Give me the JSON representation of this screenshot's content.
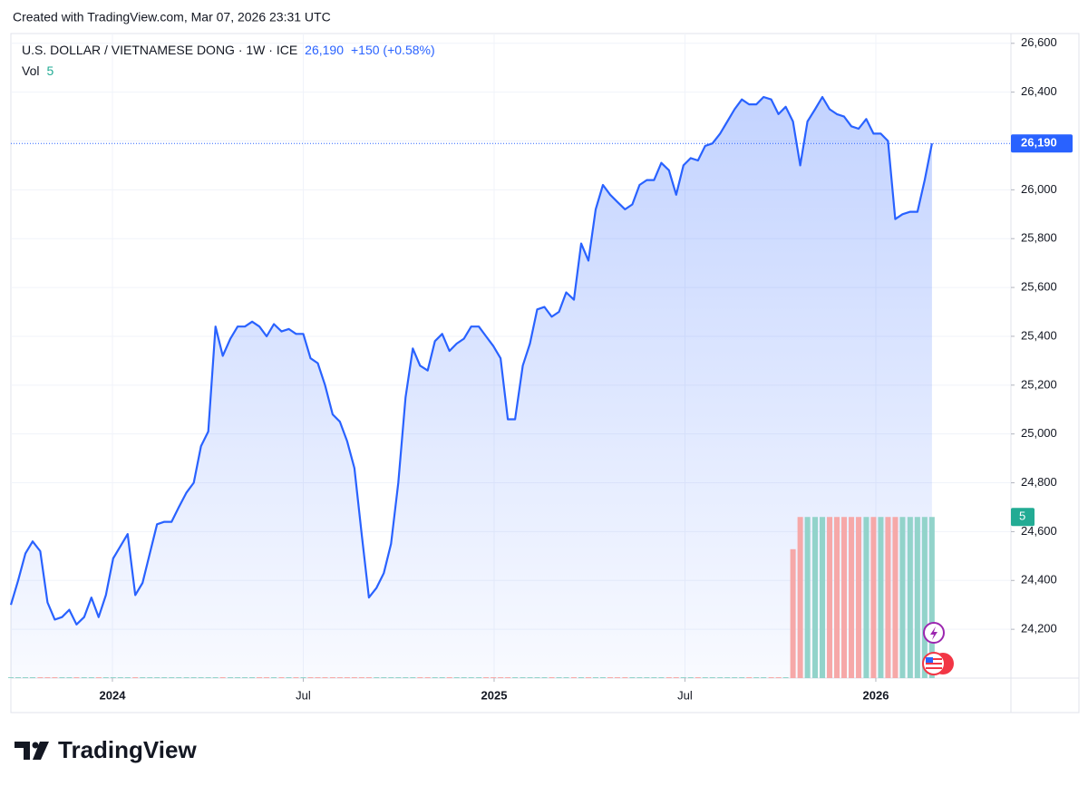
{
  "header": "Created with TradingView.com, Mar 07, 2026 23:31 UTC",
  "footer": "TradingView",
  "chart_data": {
    "type": "line",
    "title": "U.S. DOLLAR / VIETNAMESE DONG · 1W · ICE",
    "last_price": {
      "value": 26190,
      "label": "26,190"
    },
    "change": "+150 (+0.58%)",
    "xlim": [
      2023.734,
      2026.354
    ],
    "xticks": [
      {
        "value": 2024,
        "label": "2024"
      },
      {
        "value": 2024.5,
        "label": "Jul"
      },
      {
        "value": 2025,
        "label": "2025"
      },
      {
        "value": 2025.5,
        "label": "Jul"
      },
      {
        "value": 2026,
        "label": "2026"
      }
    ],
    "ylim": [
      24000,
      26640
    ],
    "yticks": [
      {
        "value": 24200,
        "label": "24,200"
      },
      {
        "value": 24400,
        "label": "24,400"
      },
      {
        "value": 24600,
        "label": "24,600"
      },
      {
        "value": 24800,
        "label": "24,800"
      },
      {
        "value": 25000,
        "label": "25,000"
      },
      {
        "value": 25200,
        "label": "25,200"
      },
      {
        "value": 25400,
        "label": "25,400"
      },
      {
        "value": 25600,
        "label": "25,600"
      },
      {
        "value": 25800,
        "label": "25,800"
      },
      {
        "value": 26000,
        "label": "26,000"
      },
      {
        "value": 26200,
        "label": "26,200"
      },
      {
        "value": 26400,
        "label": "26,400"
      },
      {
        "value": 26600,
        "label": "26,600"
      }
    ],
    "y2lim": [
      0,
      20
    ],
    "grid": true,
    "x": [
      2023.734,
      2023.753,
      2023.772,
      2023.791,
      2023.811,
      2023.83,
      2023.849,
      2023.868,
      2023.887,
      2023.906,
      2023.926,
      2023.945,
      2023.964,
      2023.983,
      2024.002,
      2024.021,
      2024.04,
      2024.06,
      2024.079,
      2024.098,
      2024.117,
      2024.136,
      2024.155,
      2024.174,
      2024.194,
      2024.213,
      2024.232,
      2024.251,
      2024.27,
      2024.289,
      2024.309,
      2024.328,
      2024.347,
      2024.366,
      2024.385,
      2024.404,
      2024.423,
      2024.443,
      2024.462,
      2024.481,
      2024.5,
      2024.519,
      2024.538,
      2024.557,
      2024.577,
      2024.596,
      2024.615,
      2024.634,
      2024.653,
      2024.672,
      2024.692,
      2024.711,
      2024.73,
      2024.749,
      2024.768,
      2024.787,
      2024.806,
      2024.826,
      2024.845,
      2024.864,
      2024.883,
      2024.902,
      2024.921,
      2024.94,
      2024.96,
      2024.979,
      2024.998,
      2025.017,
      2025.036,
      2025.055,
      2025.075,
      2025.094,
      2025.113,
      2025.132,
      2025.151,
      2025.17,
      2025.189,
      2025.209,
      2025.228,
      2025.247,
      2025.266,
      2025.285,
      2025.304,
      2025.323,
      2025.343,
      2025.362,
      2025.381,
      2025.4,
      2025.419,
      2025.438,
      2025.458,
      2025.477,
      2025.496,
      2025.515,
      2025.534,
      2025.553,
      2025.572,
      2025.592,
      2025.611,
      2025.63,
      2025.649,
      2025.668,
      2025.687,
      2025.706,
      2025.726,
      2025.745,
      2025.764,
      2025.783,
      2025.802,
      2025.821,
      2025.841,
      2025.86,
      2025.879,
      2025.898,
      2025.917,
      2025.936,
      2025.955,
      2025.975,
      2025.994,
      2026.013,
      2026.032,
      2026.051,
      2026.07,
      2026.09,
      2026.109,
      2026.128,
      2026.147
    ],
    "series": [
      {
        "color": "#2962ff",
        "values": [
          24300,
          24400,
          24510,
          24560,
          24520,
          24310,
          24240,
          24250,
          24280,
          24220,
          24250,
          24330,
          24250,
          24340,
          24490,
          24540,
          24590,
          24340,
          24390,
          24510,
          24630,
          24640,
          24640,
          24700,
          24760,
          24800,
          24950,
          25010,
          25440,
          25320,
          25390,
          25440,
          25440,
          25460,
          25440,
          25400,
          25450,
          25420,
          25430,
          25410,
          25410,
          25310,
          25290,
          25200,
          25080,
          25050,
          24970,
          24860,
          24590,
          24330,
          24370,
          24430,
          24550,
          24800,
          25150,
          25350,
          25280,
          25260,
          25380,
          25410,
          25340,
          25370,
          25390,
          25440,
          25440,
          25400,
          25360,
          25310,
          25060,
          25060,
          25280,
          25370,
          25510,
          25520,
          25480,
          25500,
          25580,
          25550,
          25780,
          25710,
          25920,
          26020,
          25980,
          25950,
          25920,
          25940,
          26020,
          26040,
          26040,
          26110,
          26080,
          25980,
          26100,
          26130,
          26120,
          26180,
          26190,
          26230,
          26280,
          26330,
          26370,
          26350,
          26350,
          26380,
          26370,
          26310,
          26340,
          26280,
          26100,
          26280,
          26330,
          26380,
          26330,
          26310,
          26300,
          26260,
          26250,
          26290,
          26230,
          26230,
          26200,
          25880,
          25900,
          25910,
          25910,
          26040,
          26190
        ]
      },
      {
        "name": "Vol",
        "type": "bar",
        "axis": "y2",
        "colors": {
          "up": "#92d3ca",
          "down": "#f6a8a8"
        },
        "values": [
          0,
          0,
          0,
          0,
          0,
          0,
          0,
          0,
          0,
          0,
          0,
          0,
          0,
          0,
          0,
          0,
          0,
          0,
          0,
          0,
          0,
          0,
          0,
          0,
          0,
          0,
          0,
          0,
          0,
          0,
          0,
          0,
          0,
          0,
          0,
          0,
          0,
          0,
          0,
          0,
          0,
          0,
          0,
          0,
          0,
          0,
          0,
          0,
          0,
          0,
          0,
          0,
          0,
          0,
          0,
          0,
          0,
          0,
          0,
          0,
          0,
          0,
          0,
          0,
          0,
          0,
          0,
          0,
          0,
          0,
          0,
          0,
          0,
          0,
          0,
          0,
          0,
          0,
          0,
          0,
          0,
          0,
          0,
          0,
          0,
          0,
          0,
          0,
          0,
          0,
          0,
          0,
          0,
          0,
          0,
          0,
          0,
          0,
          0,
          0,
          0,
          0,
          0,
          0,
          0,
          0,
          0,
          4,
          5,
          5,
          5,
          5,
          5,
          5,
          5,
          5,
          5,
          5,
          5,
          5,
          5,
          5,
          5,
          5,
          5,
          5,
          5
        ]
      }
    ]
  }
}
